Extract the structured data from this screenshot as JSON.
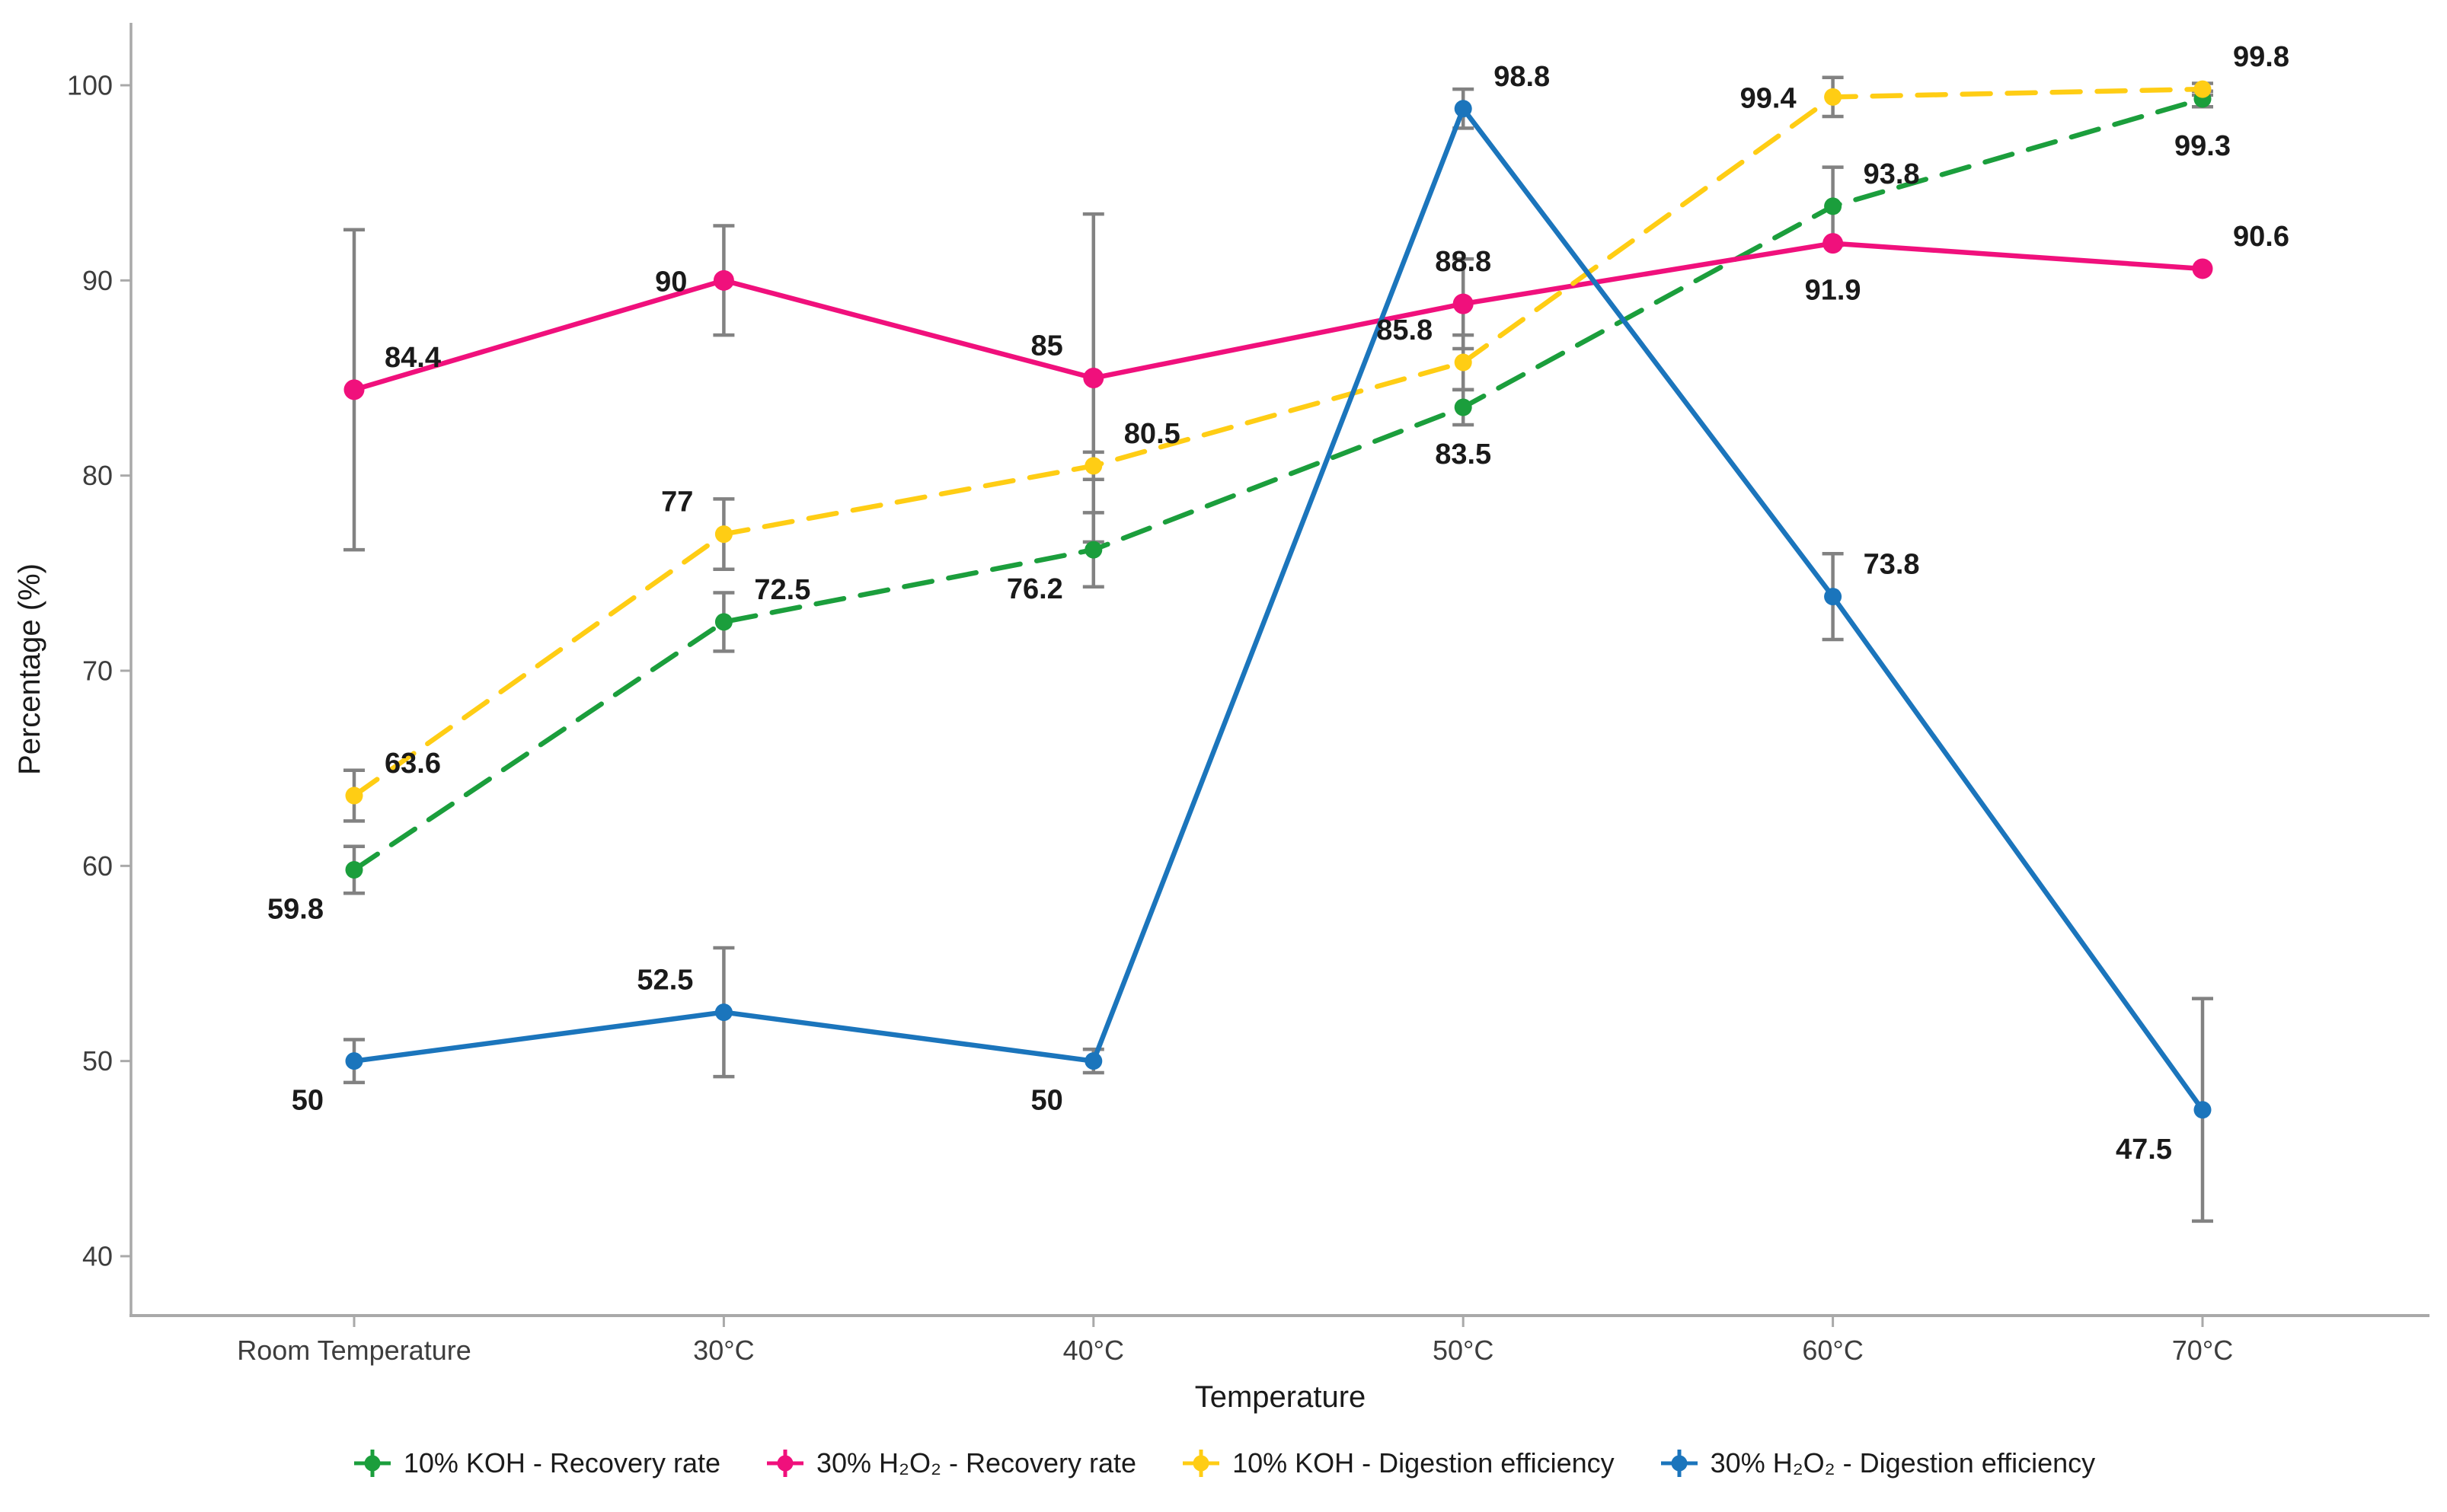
{
  "figure": {
    "background": "#ffffff"
  },
  "chart_data": {
    "type": "line",
    "title": "",
    "xlabel": "Temperature",
    "ylabel": "Percentage (%)",
    "categories": [
      "Room Temperature",
      "30°C",
      "40°C",
      "50°C",
      "60°C",
      "70°C"
    ],
    "yticks": [
      40,
      50,
      60,
      70,
      80,
      90,
      100
    ],
    "ylim": [
      40,
      100
    ],
    "grid": false,
    "legend_position": "bottom",
    "error_bar_color": "#828282",
    "axis_color": "#a9a9a9",
    "tick_label_color": "#3d3d3d",
    "data_label_color": "#1a1a1a",
    "series": [
      {
        "name": "10% KOH - Recovery rate",
        "color": "#1B9E3C",
        "line_style": "dashed",
        "values": [
          59.8,
          72.5,
          76.2,
          83.5,
          93.8,
          99.3
        ],
        "errors": [
          1.2,
          1.5,
          1.9,
          0.9,
          2.0,
          0.4
        ],
        "labels": [
          "59.8",
          "72.5",
          "76.2",
          "83.5",
          "93.8",
          "99.3"
        ],
        "label_pos": [
          "sw",
          "ne",
          "sw",
          "s",
          "ne",
          "s"
        ]
      },
      {
        "name": "30% H₂O₂ - Recovery rate",
        "color": "#F0107C",
        "line_style": "solid",
        "values": [
          84.4,
          90,
          85,
          88.8,
          91.9,
          90.6
        ],
        "errors": [
          8.2,
          2.8,
          8.4,
          2.3,
          0,
          0
        ],
        "labels": [
          "84.4",
          "90",
          "85",
          "88.8",
          "91.9",
          "90.6"
        ],
        "label_pos": [
          "ne",
          "w",
          "nw",
          "n",
          "s",
          "ne"
        ]
      },
      {
        "name": "10% KOH - Digestion efficiency",
        "color": "#FFCD14",
        "line_style": "dashed",
        "values": [
          63.6,
          77,
          80.5,
          85.8,
          99.4,
          99.8
        ],
        "errors": [
          1.3,
          1.8,
          0.7,
          1.4,
          1.0,
          0.3
        ],
        "labels": [
          "63.6",
          "77",
          "80.5",
          "85.8",
          "99.4",
          "99.8"
        ],
        "label_pos": [
          "ne",
          "nw",
          "ne",
          "nw",
          "w",
          "ne"
        ]
      },
      {
        "name": "30% H₂O₂ - Digestion efficiency",
        "color": "#1B75BC",
        "line_style": "solid",
        "values": [
          50,
          52.5,
          50,
          98.8,
          73.8,
          47.5
        ],
        "errors": [
          1.1,
          3.3,
          0.6,
          1.0,
          2.2,
          5.7
        ],
        "labels": [
          "50",
          "52.5",
          "50",
          "98.8",
          "73.8",
          "47.5"
        ],
        "label_pos": [
          "sw",
          "nw",
          "sw",
          "ne",
          "ne",
          "sw"
        ]
      }
    ]
  }
}
